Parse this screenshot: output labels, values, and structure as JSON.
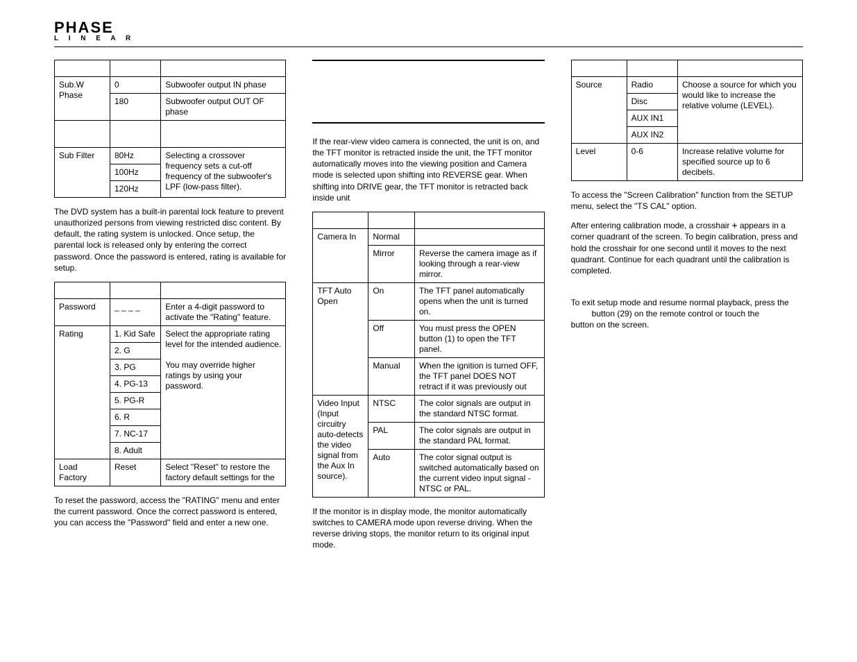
{
  "logo": {
    "main": "PHASE",
    "sub": "L I N E A R"
  },
  "col1": {
    "audioTable": {
      "rows": [
        {
          "param": "Sub.W Phase",
          "opt": "0",
          "desc": "Subwoofer output IN phase",
          "paramRowspan": 2
        },
        {
          "opt": "180",
          "desc": "Subwoofer output OUT OF phase"
        },
        {
          "blank": true
        },
        {
          "param": "Sub Filter",
          "opt": "80Hz",
          "desc": "Selecting a crossover frequency sets a cut-off frequency of the subwoofer's LPF (low-pass filter).",
          "paramRowspan": 3,
          "descRowspan": 3
        },
        {
          "opt": "100Hz"
        },
        {
          "opt": "120Hz"
        }
      ]
    },
    "parentalPara": "The DVD system has a built-in parental lock feature to prevent unauthorized persons from viewing restricted disc content. By default, the rating system is unlocked. Once setup, the parental lock is released only by entering the correct password. Once the password is entered, rating is available for setup.",
    "ratingTable": {
      "rows": [
        {
          "param": "Password",
          "opt": "_ _ _ _",
          "desc": "Enter a 4-digit password to activate the \"Rating\" feature."
        },
        {
          "param": "Rating",
          "opt": "1. Kid Safe",
          "desc": "Select the appropriate rating level for the intended audience.\n\nYou may override higher ratings by using your password.",
          "paramRowspan": 8,
          "descRowspan": 8
        },
        {
          "opt": "2. G"
        },
        {
          "opt": "3. PG"
        },
        {
          "opt": "4. PG-13"
        },
        {
          "opt": "5. PG-R"
        },
        {
          "opt": "6. R"
        },
        {
          "opt": "7. NC-17"
        },
        {
          "opt": "8. Adult"
        },
        {
          "param": "Load Factory",
          "opt": "Reset",
          "desc": "Select \"Reset\" to restore the factory default settings for the"
        }
      ]
    },
    "resetPara": "To reset the password, access the \"RATING\" menu and enter the current password. Once the correct password is entered, you can access the \"Password\" field and enter a new one."
  },
  "col2": {
    "cameraPara": "If the rear-view video camera is connected, the unit is on, and the TFT monitor is retracted inside the unit, the TFT monitor automatically moves into the viewing position and Camera mode is selected upon shifting into REVERSE gear. When shifting into DRIVE gear, the TFT monitor is retracted back inside unit",
    "cameraTable": {
      "rows": [
        {
          "param": "Camera In",
          "opt": "Normal",
          "desc": "",
          "paramRowspan": 2
        },
        {
          "opt": "Mirror",
          "desc": "Reverse the camera image as if looking through a rear-view mirror."
        },
        {
          "param": "TFT Auto Open",
          "opt": "On",
          "desc": "The TFT panel automatically opens when the unit is turned on.",
          "paramRowspan": 3
        },
        {
          "opt": "Off",
          "desc": "You must press the OPEN button (1) to open the TFT panel."
        },
        {
          "opt": "Manual",
          "desc": "When the ignition is turned OFF, the TFT panel DOES NOT retract if it was previously out"
        },
        {
          "param": "Video Input (Input circuitry auto-detects the video signal from the Aux In source).",
          "opt": "NTSC",
          "desc": "The color signals are output in the standard NTSC format.",
          "paramRowspan": 3
        },
        {
          "opt": "PAL",
          "desc": "The color signals are output in the standard PAL format."
        },
        {
          "opt": "Auto",
          "desc": "The color signal output is switched automatically based on the current video input signal - NTSC or PAL."
        }
      ]
    },
    "monitorPara": "If the monitor is in display mode, the monitor automatically switches to CAMERA mode upon reverse driving. When the reverse driving stops, the monitor return to its original input mode."
  },
  "col3": {
    "sourceTable": {
      "rows": [
        {
          "param": "Source",
          "opt": "Radio",
          "desc": "Choose a source for which you would like to increase the relative volume (LEVEL).",
          "paramRowspan": 4,
          "descRowspan": 4
        },
        {
          "opt": "Disc"
        },
        {
          "opt": "AUX IN1"
        },
        {
          "opt": "AUX IN2"
        },
        {
          "param": "Level",
          "opt": "0-6",
          "desc": "Increase relative volume for specified source up to 6 decibels."
        }
      ]
    },
    "calPara1": "To access the \"Screen Calibration\" function from the SETUP menu, select the \"TS CAL\" option.",
    "calPara2a": "After entering calibration mode, a crosshair ",
    "calPara2b": " appears in a corner quadrant of the screen. To begin calibration, press and hold the crosshair for one second until it moves to the next quadrant. Continue for each quadrant until the calibration is completed.",
    "exitPara1": "To exit setup mode and resume normal playback, press the",
    "exitPara2": " button (29) on the remote control or touch the",
    "exitPara3": "button on the screen."
  },
  "widths": {
    "t1": [
      "24%",
      "22%",
      "54%"
    ],
    "t2": [
      "24%",
      "22%",
      "54%"
    ],
    "t3": [
      "24%",
      "20%",
      "56%"
    ],
    "t4": [
      "24%",
      "22%",
      "54%"
    ]
  }
}
